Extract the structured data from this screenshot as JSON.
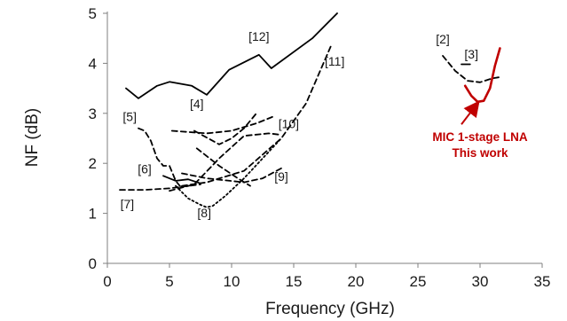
{
  "chart_data": {
    "type": "line",
    "title": "",
    "xlabel": "Frequency (GHz)",
    "ylabel": "NF (dB)",
    "xlim": [
      0,
      35
    ],
    "ylim": [
      0,
      5
    ],
    "xticks": [
      "0",
      "5",
      "10",
      "15",
      "20",
      "25",
      "30",
      "35"
    ],
    "yticks": [
      "0",
      "1",
      "2",
      "3",
      "4",
      "5"
    ],
    "grid": false,
    "legend": "none",
    "series": [
      {
        "ref": "[12]",
        "style": "solid",
        "color": "#000000",
        "x": [
          1.5,
          2.5,
          4,
          5,
          6.8,
          8,
          9.8,
          12.2,
          13.2,
          16.5,
          18.5
        ],
        "y": [
          3.5,
          3.3,
          3.55,
          3.63,
          3.55,
          3.37,
          3.87,
          4.17,
          3.9,
          4.5,
          5.0
        ]
      },
      {
        "ref": "[11]",
        "style": "dashed",
        "color": "#000000",
        "x": [
          6,
          8,
          11,
          14,
          16,
          18
        ],
        "y": [
          1.55,
          1.62,
          1.85,
          2.5,
          3.2,
          4.35
        ]
      },
      {
        "ref": "[10]",
        "style": "dashed",
        "color": "#000000",
        "x": [
          5,
          7,
          9,
          11,
          13,
          14
        ],
        "y": [
          1.45,
          1.58,
          2.1,
          2.55,
          2.6,
          2.57
        ]
      },
      {
        "ref": "[4]",
        "style": "dashed",
        "color": "#000000",
        "x": [
          7,
          9,
          10,
          11,
          12
        ],
        "y": [
          2.65,
          2.38,
          2.5,
          2.7,
          3.0
        ]
      },
      {
        "ref": "[4]",
        "style": "dashed",
        "color": "#000000",
        "x": [
          5.2,
          8,
          10,
          12,
          13.5
        ],
        "y": [
          2.65,
          2.6,
          2.65,
          2.8,
          2.95
        ]
      },
      {
        "ref": "[5]",
        "style": "dashed",
        "color": "#000000",
        "x": [
          2.5,
          3,
          3.5,
          4,
          4.5,
          5,
          5.5,
          6
        ],
        "y": [
          2.7,
          2.65,
          2.45,
          2.1,
          1.95,
          1.95,
          1.65,
          1.5
        ]
      },
      {
        "ref": "[6]",
        "style": "solid",
        "color": "#000000",
        "x": [
          4.5,
          5.5,
          6.5,
          7.5
        ],
        "y": [
          1.75,
          1.65,
          1.68,
          1.6
        ]
      },
      {
        "ref": "[7]",
        "style": "dashed",
        "color": "#000000",
        "x": [
          1,
          3,
          5,
          7.5
        ],
        "y": [
          1.47,
          1.47,
          1.5,
          1.58
        ]
      },
      {
        "ref": "[8]",
        "style": "dotted",
        "color": "#000000",
        "x": [
          5.5,
          6.5,
          7.5,
          8,
          8.5,
          9.5,
          11,
          12.5,
          14
        ],
        "y": [
          1.55,
          1.3,
          1.17,
          1.12,
          1.15,
          1.35,
          1.7,
          2.1,
          2.5
        ]
      },
      {
        "ref": "[9]",
        "style": "dashed",
        "color": "#000000",
        "x": [
          6,
          8,
          11,
          12.5,
          14
        ],
        "y": [
          1.8,
          1.7,
          1.62,
          1.7,
          1.9
        ]
      },
      {
        "ref": "[8]",
        "style": "dashed",
        "color": "#000000",
        "x": [
          7.2,
          9,
          10.5,
          11.5
        ],
        "y": [
          2.3,
          1.95,
          1.7,
          1.55
        ]
      },
      {
        "ref": "[2]",
        "style": "dashed",
        "color": "#000000",
        "x": [
          27,
          28,
          29,
          30,
          31,
          31.5
        ],
        "y": [
          4.15,
          3.85,
          3.65,
          3.62,
          3.7,
          3.72
        ]
      },
      {
        "ref": "[3]",
        "style": "solid",
        "color": "#000000",
        "x": [
          28.5,
          29.2
        ],
        "y": [
          3.98,
          3.98
        ]
      },
      {
        "ref": "This work",
        "style": "solid",
        "color": "#c00000",
        "x": [
          28.8,
          29.3,
          29.8,
          30.3,
          30.8,
          31.2,
          31.6
        ],
        "y": [
          3.55,
          3.35,
          3.23,
          3.25,
          3.5,
          3.95,
          4.3
        ]
      }
    ],
    "labels": [
      {
        "text": "[12]",
        "x": 12.2,
        "y": 4.45
      },
      {
        "text": "[11]",
        "x": 18.3,
        "y": 3.95
      },
      {
        "text": "[2]",
        "x": 27.0,
        "y": 4.4
      },
      {
        "text": "[3]",
        "x": 29.3,
        "y": 4.1
      },
      {
        "text": "[5]",
        "x": 1.8,
        "y": 2.85
      },
      {
        "text": "[4]",
        "x": 7.2,
        "y": 3.1
      },
      {
        "text": "[10]",
        "x": 14.6,
        "y": 2.7
      },
      {
        "text": "[6]",
        "x": 3.0,
        "y": 1.8
      },
      {
        "text": "[9]",
        "x": 14.0,
        "y": 1.65
      },
      {
        "text": "[7]",
        "x": 1.6,
        "y": 1.1
      },
      {
        "text": "[8]",
        "x": 7.8,
        "y": 0.92
      }
    ],
    "annotation": {
      "lines": [
        "MIC 1-stage LNA",
        "This work"
      ],
      "color": "#c00000",
      "text_at": [
        30.0,
        2.45
      ],
      "arrow_from": [
        28.5,
        2.78
      ],
      "arrow_to": [
        29.8,
        3.2
      ]
    }
  }
}
